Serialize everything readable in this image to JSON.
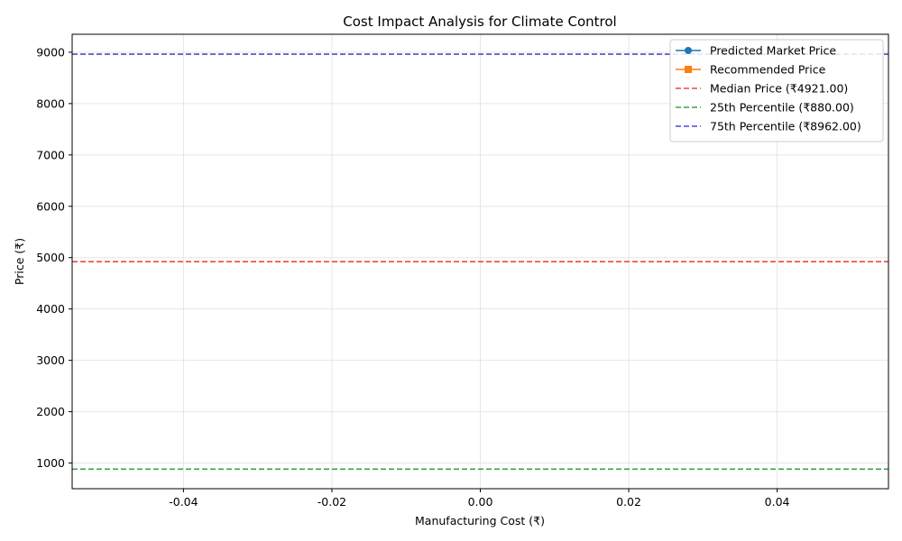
{
  "chart_data": {
    "type": "line",
    "title": "Cost Impact Analysis for Climate Control",
    "xlabel": "Manufacturing Cost (₹)",
    "ylabel": "Price (₹)",
    "xlim": [
      -0.055,
      0.055
    ],
    "ylim": [
      500,
      9350
    ],
    "x_ticks": [
      "-0.04",
      "-0.02",
      "0.00",
      "0.02",
      "0.04"
    ],
    "x_tick_values": [
      -0.04,
      -0.02,
      0.0,
      0.02,
      0.04
    ],
    "y_ticks": [
      "1000",
      "2000",
      "3000",
      "4000",
      "5000",
      "6000",
      "7000",
      "8000",
      "9000"
    ],
    "y_tick_values": [
      1000,
      2000,
      3000,
      4000,
      5000,
      6000,
      7000,
      8000,
      9000
    ],
    "grid": true,
    "legend_position": "top-right",
    "series": [
      {
        "name": "Predicted Market Price",
        "color": "#1f77b4",
        "marker": "circle",
        "x": [],
        "y": []
      },
      {
        "name": "Recommended Price",
        "color": "#ff7f0e",
        "marker": "square",
        "x": [],
        "y": []
      }
    ],
    "reference_lines": [
      {
        "label": "Median Price (₹4921.00)",
        "value": 4921,
        "color": "#e74c3c"
      },
      {
        "label": "25th Percentile (₹880.00)",
        "value": 880,
        "color": "#3aa646"
      },
      {
        "label": "75th Percentile (₹8962.00)",
        "value": 8962,
        "color": "#4a4ad6"
      }
    ]
  }
}
